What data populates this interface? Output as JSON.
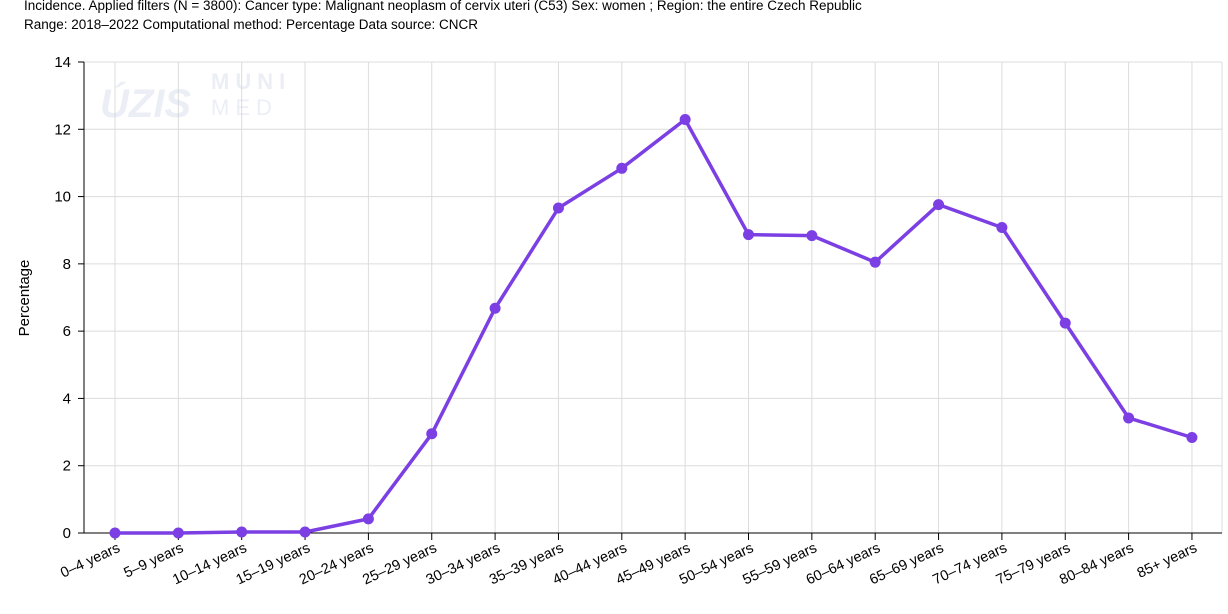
{
  "header": {
    "line1": "Incidence. Applied filters (N = 3800): Cancer type: Malignant neoplasm of cervix uteri (C53) Sex: women ; Region: the entire Czech Republic",
    "line2": "Range: 2018–2022 Computational method: Percentage Data source: CNCR"
  },
  "watermark": {
    "left": "ÚZIS",
    "right_top": "MUNI",
    "right_bottom": "MED"
  },
  "colors": {
    "series": "#7b3fe4",
    "grid": "#dcdcdc",
    "axis": "#000000"
  },
  "chart_data": {
    "type": "line",
    "title": "",
    "xlabel": "",
    "ylabel": "Percentage",
    "ylim": [
      0,
      14
    ],
    "yticks": [
      0,
      2,
      4,
      6,
      8,
      10,
      12,
      14
    ],
    "grid": true,
    "legend": "none",
    "categories": [
      "0–4 years",
      "5–9 years",
      "10–14 years",
      "15–19 years",
      "20–24 years",
      "25–29 years",
      "30–34 years",
      "35–39 years",
      "40–44 years",
      "45–49 years",
      "50–54 years",
      "55–59 years",
      "60–64 years",
      "65–69 years",
      "70–74 years",
      "75–79 years",
      "80–84 years",
      "85+ years"
    ],
    "series": [
      {
        "values": [
          0.0,
          0.0,
          0.03,
          0.03,
          0.42,
          2.95,
          6.68,
          9.66,
          10.84,
          12.29,
          8.87,
          8.84,
          8.05,
          9.76,
          9.08,
          6.24,
          3.42,
          2.84
        ]
      }
    ]
  }
}
